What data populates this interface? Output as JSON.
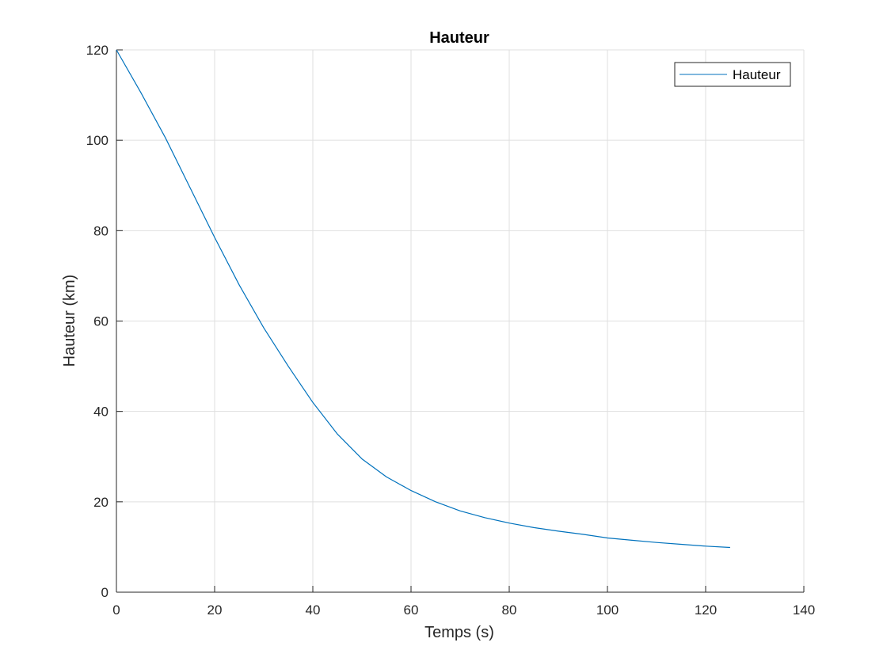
{
  "chart_data": {
    "type": "line",
    "title": "Hauteur",
    "xlabel": "Temps (s)",
    "ylabel": "Hauteur (km)",
    "xlim": [
      0,
      140
    ],
    "ylim": [
      0,
      120
    ],
    "xticks": [
      0,
      20,
      40,
      60,
      80,
      100,
      120,
      140
    ],
    "yticks": [
      0,
      20,
      40,
      60,
      80,
      100,
      120
    ],
    "grid": true,
    "legend": {
      "position": "top-right",
      "entries": [
        "Hauteur"
      ]
    },
    "series": [
      {
        "name": "Hauteur",
        "color": "#0072bd",
        "x": [
          0,
          5,
          10,
          15,
          20,
          25,
          30,
          35,
          40,
          45,
          50,
          55,
          60,
          65,
          70,
          75,
          80,
          85,
          90,
          95,
          100,
          105,
          110,
          115,
          120,
          125
        ],
        "y": [
          120,
          110.5,
          100.5,
          89.5,
          78.5,
          68,
          58.5,
          50,
          42,
          35,
          29.5,
          25.5,
          22.5,
          20,
          18,
          16.5,
          15.3,
          14.3,
          13.5,
          12.8,
          12,
          11.5,
          11,
          10.6,
          10.2,
          9.9
        ]
      }
    ]
  }
}
